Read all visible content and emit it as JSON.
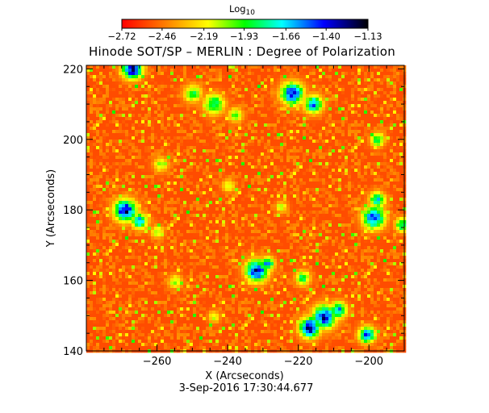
{
  "chart_data": {
    "type": "heatmap",
    "title": "Hinode SOT/SP – MERLIN : Degree of Polarization",
    "xlabel": "X (Arcseconds)",
    "ylabel": "Y (Arcseconds)",
    "xlim": [
      -280,
      -190
    ],
    "ylim": [
      140,
      221
    ],
    "x_ticks": [
      -260,
      -240,
      -220,
      -200
    ],
    "x_tick_labels": [
      "−260",
      "−240",
      "−220",
      "−200"
    ],
    "y_ticks": [
      140,
      160,
      180,
      200,
      220
    ],
    "y_tick_labels": [
      "140",
      "160",
      "180",
      "200",
      "220"
    ],
    "colorbar": {
      "label": "Log",
      "label_subscript": "10",
      "range": [
        -2.72,
        -1.13
      ],
      "ticks": [
        -2.72,
        -2.46,
        -2.19,
        -1.93,
        -1.66,
        -1.4,
        -1.13
      ],
      "tick_labels": [
        "−2.72",
        "−2.46",
        "−2.19",
        "−1.93",
        "−1.66",
        "−1.40",
        "−1.13"
      ],
      "colors": [
        "#ff0000",
        "#ff8000",
        "#ffff00",
        "#00ff00",
        "#00ffff",
        "#0000ff",
        "#000000"
      ]
    },
    "background_level": -2.55,
    "features": [
      {
        "x": -267,
        "y": 220,
        "peak": -1.25,
        "radius": 2.0
      },
      {
        "x": -250,
        "y": 213,
        "peak": -1.9,
        "radius": 1.8
      },
      {
        "x": -244,
        "y": 210,
        "peak": -1.75,
        "radius": 2.0
      },
      {
        "x": -238,
        "y": 207,
        "peak": -2.0,
        "radius": 1.5
      },
      {
        "x": -222,
        "y": 213,
        "peak": -1.35,
        "radius": 2.2
      },
      {
        "x": -216,
        "y": 210,
        "peak": -1.55,
        "radius": 1.8
      },
      {
        "x": -269,
        "y": 180,
        "peak": -1.3,
        "radius": 2.2
      },
      {
        "x": -265,
        "y": 177,
        "peak": -1.6,
        "radius": 1.6
      },
      {
        "x": -260,
        "y": 174,
        "peak": -2.05,
        "radius": 1.3
      },
      {
        "x": -232,
        "y": 163,
        "peak": -1.35,
        "radius": 2.2
      },
      {
        "x": -229,
        "y": 165,
        "peak": -1.6,
        "radius": 1.4
      },
      {
        "x": -219,
        "y": 161,
        "peak": -1.85,
        "radius": 1.5
      },
      {
        "x": -213,
        "y": 150,
        "peak": -1.35,
        "radius": 2.3
      },
      {
        "x": -217,
        "y": 147,
        "peak": -1.25,
        "radius": 2.0
      },
      {
        "x": -209,
        "y": 152,
        "peak": -1.55,
        "radius": 1.6
      },
      {
        "x": -201,
        "y": 145,
        "peak": -1.45,
        "radius": 1.6
      },
      {
        "x": -199,
        "y": 178,
        "peak": -1.45,
        "radius": 2.2
      },
      {
        "x": -198,
        "y": 183,
        "peak": -1.7,
        "radius": 1.6
      },
      {
        "x": -191,
        "y": 176,
        "peak": -1.75,
        "radius": 1.4
      },
      {
        "x": -259,
        "y": 193,
        "peak": -2.05,
        "radius": 1.5
      },
      {
        "x": -240,
        "y": 187,
        "peak": -2.1,
        "radius": 1.3
      },
      {
        "x": -255,
        "y": 160,
        "peak": -2.05,
        "radius": 1.4
      },
      {
        "x": -198,
        "y": 200,
        "peak": -1.85,
        "radius": 1.4
      },
      {
        "x": -244,
        "y": 150,
        "peak": -2.1,
        "radius": 1.2
      },
      {
        "x": -225,
        "y": 181,
        "peak": -2.1,
        "radius": 1.2
      }
    ]
  },
  "footer": {
    "date": "3-Sep-2016 17:30:44.677"
  }
}
